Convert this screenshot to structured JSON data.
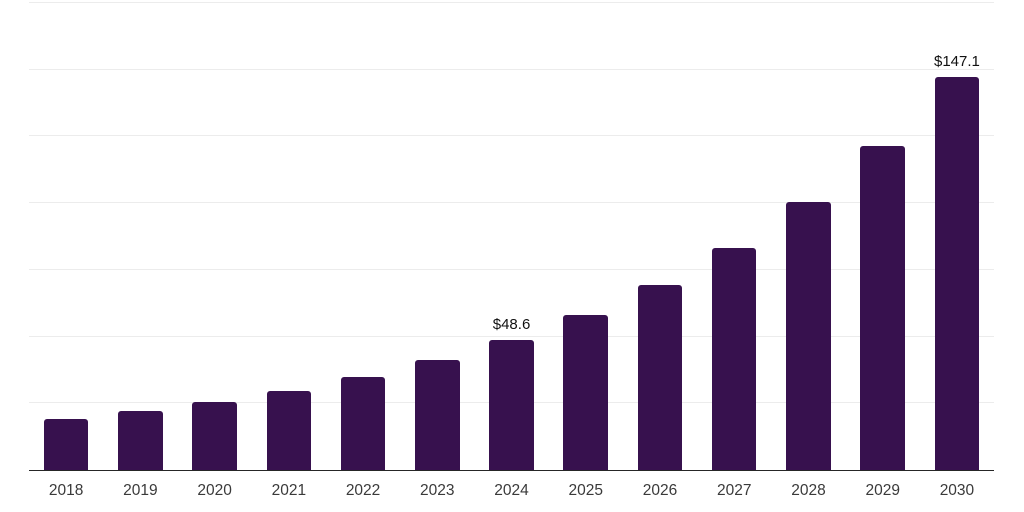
{
  "chart_data": {
    "type": "bar",
    "categories": [
      "2018",
      "2019",
      "2020",
      "2021",
      "2022",
      "2023",
      "2024",
      "2025",
      "2026",
      "2027",
      "2028",
      "2029",
      "2030"
    ],
    "values": [
      19.1,
      22.1,
      25.5,
      29.6,
      34.8,
      41.2,
      48.6,
      58.1,
      69.3,
      83.2,
      100.4,
      121.4,
      147.1
    ],
    "labeled_points": [
      {
        "category": "2024",
        "label": "$48.6"
      },
      {
        "category": "2030",
        "label": "$147.1"
      }
    ],
    "title": "",
    "xlabel": "",
    "ylabel": "",
    "ylim": [
      0,
      175
    ],
    "grid_step": 25,
    "grid": true,
    "legend": false,
    "bar_width_ratio": 0.6,
    "colors": {
      "bar": "#37114E",
      "grid": "#ececec",
      "axis": "#262626",
      "value_label": "#111111",
      "tick_label": "#3a3a3a",
      "background": "#ffffff"
    }
  }
}
